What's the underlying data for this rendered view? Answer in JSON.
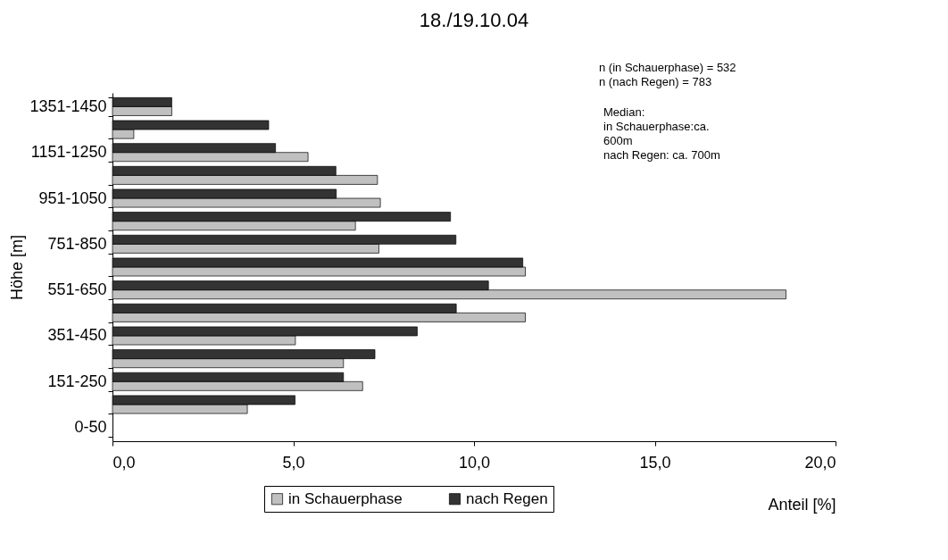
{
  "chart_data": {
    "type": "bar",
    "orientation": "horizontal",
    "title": "18./19.10.04",
    "xlabel": "Anteil [%]",
    "ylabel": "Höhe [m]",
    "categories": [
      "1351-1450",
      null,
      "1151-1250",
      null,
      "951-1050",
      null,
      "751-850",
      null,
      "551-650",
      null,
      "351-450",
      null,
      "151-250",
      null,
      "0-50"
    ],
    "series": [
      {
        "name": "in Schauerphase",
        "color": "#c0c0c0",
        "values": [
          1.64,
          0.59,
          5.41,
          7.33,
          7.41,
          6.72,
          7.37,
          11.42,
          18.63,
          11.42,
          5.06,
          6.39,
          6.92,
          3.73,
          null
        ]
      },
      {
        "name": "nach Regen",
        "color": "#333333",
        "values": [
          1.64,
          4.32,
          4.51,
          6.18,
          6.19,
          9.35,
          9.5,
          11.35,
          10.4,
          9.51,
          8.43,
          7.26,
          6.39,
          5.05,
          null
        ]
      }
    ],
    "xlim": [
      0,
      20
    ],
    "xticks": [
      {
        "value": 0,
        "label": "0,0"
      },
      {
        "value": 5,
        "label": "5,0"
      },
      {
        "value": 10,
        "label": "10,0"
      },
      {
        "value": 15,
        "label": "15,0"
      },
      {
        "value": 20,
        "label": "20,0"
      }
    ],
    "legend": "bottom",
    "grid": false,
    "annotations": [
      "n (in Schauerphase) = 532",
      "n (nach Regen)        = 783",
      "Median:",
      "in Schauerphase:ca.",
      "600m",
      "nach Regen: ca. 700m"
    ]
  }
}
